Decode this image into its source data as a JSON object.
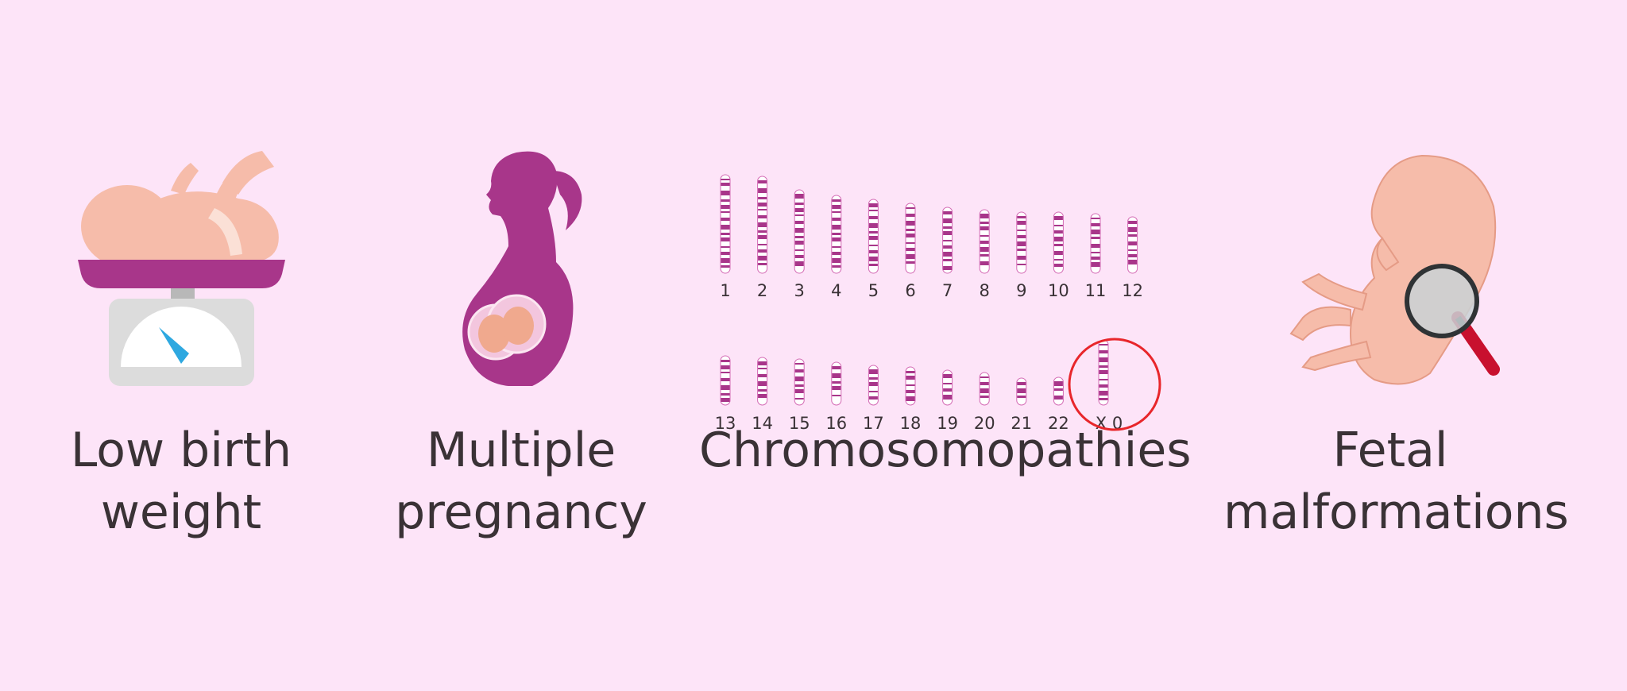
{
  "items": [
    {
      "caption_lines": [
        "Low birth",
        "weight"
      ],
      "icon": "baby-on-scale"
    },
    {
      "caption_lines": [
        "Multiple",
        "pregnancy"
      ],
      "icon": "pregnant-woman-twins"
    },
    {
      "caption_lines": [
        "Chromosomopathies"
      ],
      "icon": "karyotype"
    },
    {
      "caption_lines": [
        "Fetal",
        "malformations"
      ],
      "icon": "fetus-magnifier"
    }
  ],
  "karyotype": {
    "row1_labels": [
      "1",
      "2",
      "3",
      "4",
      "5",
      "6",
      "7",
      "8",
      "9",
      "10",
      "11",
      "12"
    ],
    "row2_labels": [
      "13",
      "14",
      "15",
      "16",
      "17",
      "18",
      "19",
      "20",
      "21",
      "22"
    ],
    "highlight_label": "X 0"
  },
  "colors": {
    "background": "#fde4f8",
    "purple": "#a8368a",
    "skin": "#f6bcaa",
    "highlight": "#e8262b",
    "gauge": "#2ea8e0",
    "text": "#3a3236"
  }
}
